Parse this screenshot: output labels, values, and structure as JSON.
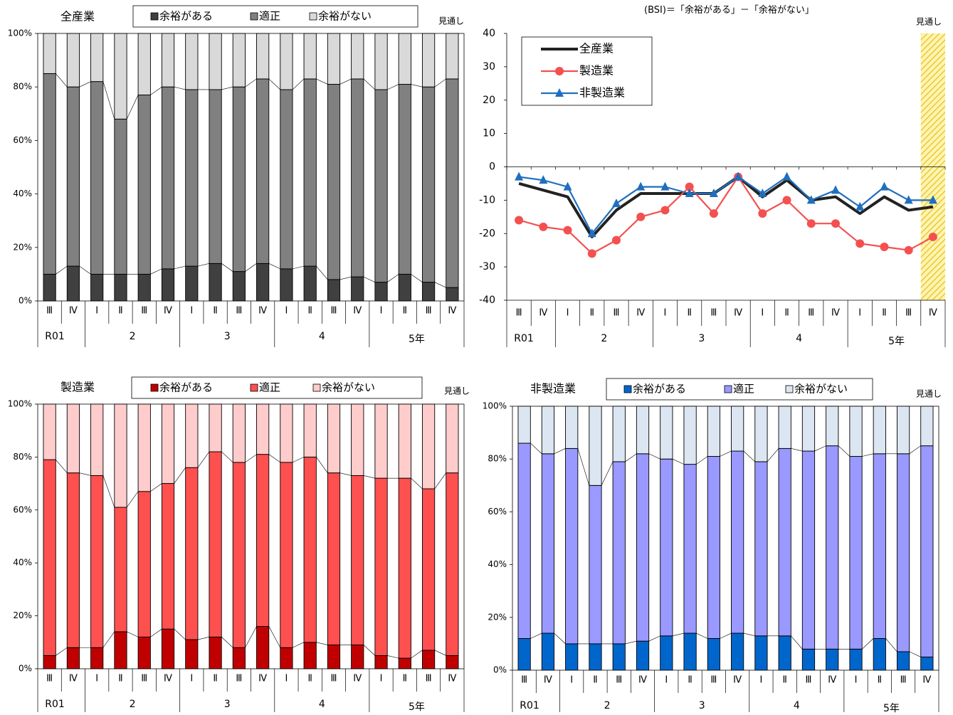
{
  "quarters": [
    "Ⅲ",
    "Ⅳ",
    "Ⅰ",
    "Ⅱ",
    "Ⅲ",
    "Ⅳ",
    "Ⅰ",
    "Ⅱ",
    "Ⅲ",
    "Ⅳ",
    "Ⅰ",
    "Ⅱ",
    "Ⅲ",
    "Ⅳ",
    "Ⅰ",
    "Ⅱ",
    "Ⅲ",
    "Ⅳ"
  ],
  "year_groups": [
    {
      "label": "R01",
      "start": 0,
      "count": 2
    },
    {
      "label": "2",
      "start": 2,
      "count": 4
    },
    {
      "label": "3",
      "start": 6,
      "count": 4
    },
    {
      "label": "4",
      "start": 10,
      "count": 4
    },
    {
      "label": "5年",
      "start": 14,
      "count": 4
    }
  ],
  "forecast_label": "見通し",
  "bsi_note": "(BSI)＝「余裕がある」－「余裕がない」",
  "stack_legend": [
    "余裕がある",
    "適正",
    "余裕がない"
  ],
  "chart_data": [
    {
      "type": "bar",
      "stacked": true,
      "title": "全産業",
      "ylim": [
        0,
        100
      ],
      "yticks": [
        "0%",
        "20%",
        "40%",
        "60%",
        "80%",
        "100%"
      ],
      "colors": [
        "#404040",
        "#808080",
        "#d9d9d9"
      ],
      "series": [
        {
          "name": "余裕がある",
          "values": [
            10,
            13,
            10,
            10,
            10,
            12,
            13,
            14,
            11,
            14,
            12,
            13,
            8,
            9,
            7,
            10,
            7,
            5
          ]
        },
        {
          "name": "適正",
          "values": [
            75,
            67,
            72,
            58,
            67,
            68,
            66,
            65,
            69,
            69,
            67,
            70,
            73,
            74,
            72,
            71,
            73,
            78
          ]
        },
        {
          "name": "余裕がない",
          "values": [
            15,
            20,
            18,
            32,
            23,
            20,
            21,
            21,
            20,
            17,
            21,
            17,
            19,
            17,
            21,
            19,
            20,
            17
          ]
        }
      ]
    },
    {
      "type": "line",
      "ylim": [
        -40,
        40
      ],
      "yticks": [
        "-40",
        "-30",
        "-20",
        "-10",
        "0",
        "10",
        "20",
        "30",
        "40"
      ],
      "series": [
        {
          "name": "全産業",
          "color": "#222222",
          "marker": "none",
          "values": [
            -5,
            -7,
            -9,
            -21,
            -13,
            -8,
            -8,
            -8,
            -8,
            -3,
            -9,
            -4,
            -10,
            -9,
            -14,
            -9,
            -13,
            -12
          ]
        },
        {
          "name": "製造業",
          "color": "#f45050",
          "marker": "circle",
          "values": [
            -16,
            -18,
            -19,
            -26,
            -22,
            -15,
            -13,
            -6,
            -14,
            -3,
            -14,
            -10,
            -17,
            -17,
            -23,
            -24,
            -25,
            -21
          ]
        },
        {
          "name": "非製造業",
          "color": "#1f6fbf",
          "marker": "triangle",
          "values": [
            -3,
            -4,
            -6,
            -20,
            -11,
            -6,
            -6,
            -8,
            -8,
            -3,
            -8,
            -3,
            -10,
            -7,
            -12,
            -6,
            -10,
            -10
          ]
        }
      ]
    },
    {
      "type": "bar",
      "stacked": true,
      "title": "製造業",
      "ylim": [
        0,
        100
      ],
      "yticks": [
        "0%",
        "20%",
        "40%",
        "60%",
        "80%",
        "100%"
      ],
      "colors": [
        "#c00000",
        "#ff5050",
        "#ffcccc"
      ],
      "series": [
        {
          "name": "余裕がある",
          "values": [
            5,
            8,
            8,
            14,
            12,
            15,
            11,
            12,
            8,
            16,
            8,
            10,
            9,
            9,
            5,
            4,
            7,
            5
          ]
        },
        {
          "name": "適正",
          "values": [
            74,
            66,
            65,
            47,
            55,
            55,
            65,
            70,
            70,
            65,
            70,
            70,
            65,
            64,
            67,
            68,
            61,
            69
          ]
        },
        {
          "name": "余裕がない",
          "values": [
            21,
            26,
            27,
            39,
            33,
            30,
            24,
            18,
            22,
            19,
            22,
            20,
            26,
            27,
            28,
            28,
            32,
            26
          ]
        }
      ]
    },
    {
      "type": "bar",
      "stacked": true,
      "title": "非製造業",
      "ylim": [
        0,
        100
      ],
      "yticks": [
        "0%",
        "20%",
        "40%",
        "60%",
        "80%",
        "100%"
      ],
      "colors": [
        "#0066cc",
        "#9999ff",
        "#dce6f2"
      ],
      "series": [
        {
          "name": "余裕がある",
          "values": [
            12,
            14,
            10,
            10,
            10,
            11,
            13,
            14,
            12,
            14,
            13,
            13,
            8,
            8,
            8,
            12,
            7,
            5
          ]
        },
        {
          "name": "適正",
          "values": [
            74,
            68,
            74,
            60,
            69,
            71,
            67,
            64,
            69,
            69,
            66,
            71,
            75,
            77,
            73,
            70,
            75,
            80
          ]
        },
        {
          "name": "余裕がない",
          "values": [
            14,
            18,
            16,
            30,
            21,
            18,
            20,
            22,
            19,
            17,
            21,
            16,
            17,
            15,
            19,
            18,
            18,
            15
          ]
        }
      ]
    }
  ]
}
